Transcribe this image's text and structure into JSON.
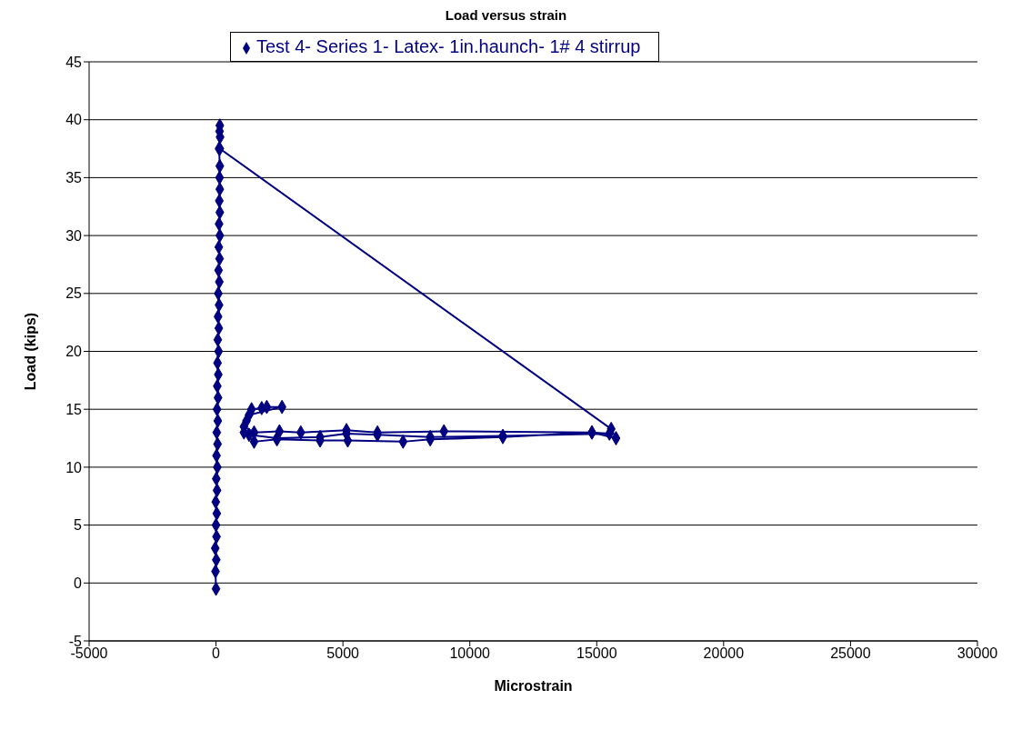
{
  "chart_data": {
    "type": "line",
    "title": "Load versus strain",
    "xlabel": "Microstrain",
    "ylabel": "Load (kips)",
    "xlim": [
      -5000,
      30000
    ],
    "xticks": [
      -5000,
      0,
      5000,
      10000,
      15000,
      20000,
      25000,
      30000
    ],
    "ylim": [
      -5,
      45
    ],
    "yticks": [
      -5,
      0,
      5,
      10,
      15,
      20,
      25,
      30,
      35,
      40,
      45
    ],
    "grid": "y",
    "legend": "top",
    "marker": "diamond",
    "line_style": "solid",
    "series": [
      {
        "name": "Test 4- Series 1- Latex- 1in.haunch- 1# 4 stirrup",
        "color": "#000080",
        "x": [
          0,
          -20,
          10,
          -30,
          20,
          0,
          30,
          -10,
          40,
          10,
          50,
          20,
          60,
          30,
          70,
          40,
          80,
          50,
          90,
          60,
          100,
          70,
          110,
          80,
          120,
          90,
          130,
          100,
          140,
          110,
          150,
          120,
          150,
          130,
          150,
          140,
          150,
          120,
          140,
          150,
          160,
          150,
          15570,
          15760,
          14810,
          11300,
          8440,
          7370,
          5190,
          4100,
          2400,
          1500,
          1100,
          1200,
          1400,
          1800,
          2000,
          2600,
          1300,
          1100,
          1500,
          2500,
          3340,
          5140,
          6360,
          8980,
          14810,
          15500,
          11300,
          8440,
          6360,
          5140,
          4100,
          2400,
          1300
        ],
        "values": [
          -0.5,
          1,
          2,
          3,
          4,
          5,
          6,
          7,
          8,
          9,
          10,
          11,
          12,
          13,
          14,
          15,
          16,
          17,
          18,
          19,
          20,
          21,
          22,
          23,
          24,
          25,
          26,
          27,
          28,
          29,
          30,
          31,
          32,
          33,
          34,
          35,
          36,
          37.5,
          39,
          39.5,
          38.5,
          37.5,
          13.3,
          12.5,
          13.0,
          12.6,
          12.4,
          12.2,
          12.3,
          12.3,
          12.4,
          12.2,
          13.0,
          14.0,
          15.0,
          15.1,
          15.2,
          15.2,
          14.5,
          13.5,
          13.0,
          13.1,
          13.0,
          13.2,
          13.0,
          13.1,
          13.0,
          12.9,
          12.7,
          12.6,
          12.8,
          12.9,
          12.6,
          12.5,
          12.8
        ]
      }
    ]
  }
}
